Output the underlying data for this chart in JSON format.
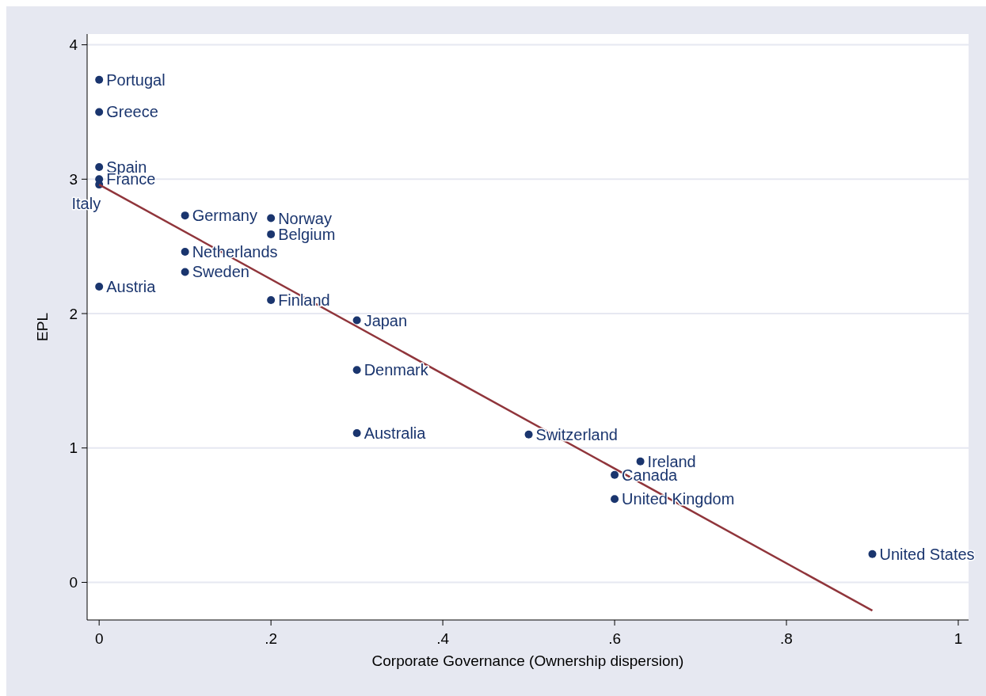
{
  "chart_data": {
    "type": "scatter",
    "xlabel": "Corporate Governance (Ownership dispersion)",
    "ylabel": "EPL",
    "xlim": [
      -0.014,
      1.012
    ],
    "ylim": [
      -0.28,
      4.08
    ],
    "xticks": [
      {
        "value": 0,
        "label": "0"
      },
      {
        "value": 0.2,
        "label": ".2"
      },
      {
        "value": 0.4,
        "label": ".4"
      },
      {
        "value": 0.6,
        "label": ".6"
      },
      {
        "value": 0.8,
        "label": ".8"
      },
      {
        "value": 1,
        "label": "1"
      }
    ],
    "yticks": [
      0,
      1,
      2,
      3,
      4
    ],
    "grid": "y",
    "series": [
      {
        "marker": "circle",
        "color": "#1a356e",
        "x": [
          0,
          0,
          0,
          0,
          0,
          0.1,
          0.2,
          0.2,
          0.1,
          0.1,
          0,
          0.2,
          0.3,
          0.3,
          0.3,
          0.5,
          0.63,
          0.6,
          0.6,
          0.9
        ],
        "values": [
          3.74,
          3.5,
          3.09,
          3.0,
          2.96,
          2.73,
          2.71,
          2.59,
          2.46,
          2.31,
          2.2,
          2.1,
          1.95,
          1.58,
          1.11,
          1.1,
          0.9,
          0.8,
          0.62,
          0.21
        ]
      },
      {
        "type": "line",
        "color": "#90353b",
        "x": [
          0,
          0.9
        ],
        "values": [
          2.96,
          -0.21
        ]
      }
    ],
    "annotations": [
      {
        "text": "Portugal",
        "x": 0,
        "y": 3.74
      },
      {
        "text": "Greece",
        "x": 0,
        "y": 3.5
      },
      {
        "text": "Spain",
        "x": 0,
        "y": 3.09
      },
      {
        "text": "France",
        "x": 0,
        "y": 3.0
      },
      {
        "text": "Italy",
        "x": 0,
        "y": 2.96
      },
      {
        "text": "Germany",
        "x": 0.1,
        "y": 2.73
      },
      {
        "text": "Norway",
        "x": 0.2,
        "y": 2.71
      },
      {
        "text": "Belgium",
        "x": 0.2,
        "y": 2.59
      },
      {
        "text": "Netherlands",
        "x": 0.1,
        "y": 2.46
      },
      {
        "text": "Sweden",
        "x": 0.1,
        "y": 2.31
      },
      {
        "text": "Austria",
        "x": 0,
        "y": 2.2
      },
      {
        "text": "Finland",
        "x": 0.2,
        "y": 2.1
      },
      {
        "text": "Japan",
        "x": 0.3,
        "y": 1.95
      },
      {
        "text": "Denmark",
        "x": 0.3,
        "y": 1.58
      },
      {
        "text": "Australia",
        "x": 0.3,
        "y": 1.11
      },
      {
        "text": "Switzerland",
        "x": 0.5,
        "y": 1.1
      },
      {
        "text": "Ireland",
        "x": 0.63,
        "y": 0.9
      },
      {
        "text": "Canada",
        "x": 0.6,
        "y": 0.8
      },
      {
        "text": "United Kingdom",
        "x": 0.6,
        "y": 0.62
      },
      {
        "text": "United States",
        "x": 0.9,
        "y": 0.21
      }
    ]
  }
}
